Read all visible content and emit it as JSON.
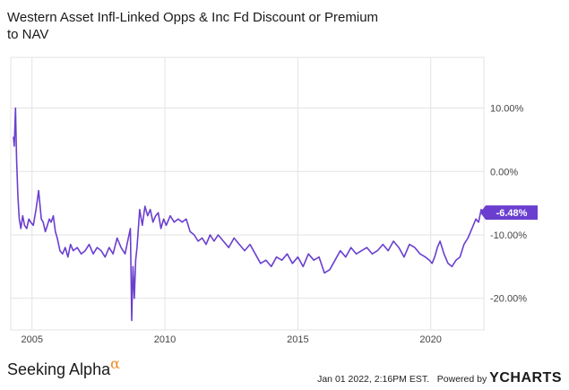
{
  "header": {
    "title": "Western Asset Infl-Linked Opps & Inc Fd Discount or Premium to NAV"
  },
  "footer": {
    "brand": "Seeking Alpha",
    "brand_mark": "α",
    "timestamp": "Jan 01 2022, 2:16PM EST.",
    "powered_by": "Powered by",
    "ycharts_logo": "YCHARTS"
  },
  "colors": {
    "series": "#6a3fcf",
    "grid": "#e3e3e3",
    "label_bg": "#6a3fcf",
    "brand_accent": "#f08a24"
  },
  "chart_data": {
    "type": "line",
    "title": "Western Asset Infl-Linked Opps & Inc Fd Discount or Premium to NAV",
    "xlabel": "",
    "ylabel": "",
    "xlim": [
      2004.2,
      2022.0
    ],
    "ylim": [
      -25,
      18
    ],
    "x_ticks": [
      2005,
      2010,
      2015,
      2020
    ],
    "x_tick_labels": [
      "2005",
      "2010",
      "2015",
      "2020"
    ],
    "y_ticks": [
      10,
      0,
      -10,
      -20
    ],
    "y_tick_labels": [
      "10.00%",
      "0.00%",
      "-10.00%",
      "-20.00%"
    ],
    "y_axis_side": "right",
    "grid": true,
    "last_value_label": "-6.48%",
    "series": [
      {
        "x": [
          2004.3,
          2004.33,
          2004.38,
          2004.42,
          2004.47,
          2004.52,
          2004.58,
          2004.65,
          2004.72,
          2004.8,
          2004.88,
          2004.95,
          2005.05,
          2005.15,
          2005.25,
          2005.35,
          2005.42,
          2005.5,
          2005.58,
          2005.65,
          2005.72,
          2005.8,
          2005.88,
          2005.95,
          2006.05,
          2006.15,
          2006.25,
          2006.35,
          2006.45,
          2006.55,
          2006.7,
          2006.85,
          2007.0,
          2007.15,
          2007.3,
          2007.45,
          2007.6,
          2007.75,
          2007.9,
          2008.05,
          2008.2,
          2008.35,
          2008.5,
          2008.6,
          2008.7,
          2008.75,
          2008.8,
          2008.85,
          2008.9,
          2008.95,
          2009.05,
          2009.15,
          2009.25,
          2009.35,
          2009.45,
          2009.55,
          2009.65,
          2009.75,
          2009.85,
          2009.95,
          2010.05,
          2010.2,
          2010.35,
          2010.5,
          2010.65,
          2010.8,
          2010.95,
          2011.1,
          2011.25,
          2011.4,
          2011.55,
          2011.7,
          2011.85,
          2012.0,
          2012.2,
          2012.4,
          2012.6,
          2012.8,
          2013.0,
          2013.2,
          2013.4,
          2013.6,
          2013.8,
          2014.0,
          2014.2,
          2014.4,
          2014.6,
          2014.8,
          2015.0,
          2015.2,
          2015.4,
          2015.6,
          2015.8,
          2016.0,
          2016.2,
          2016.4,
          2016.6,
          2016.8,
          2017.0,
          2017.2,
          2017.4,
          2017.6,
          2017.8,
          2018.0,
          2018.2,
          2018.4,
          2018.6,
          2018.8,
          2019.0,
          2019.2,
          2019.4,
          2019.6,
          2019.8,
          2019.95,
          2020.05,
          2020.15,
          2020.25,
          2020.35,
          2020.5,
          2020.65,
          2020.8,
          2020.95,
          2021.1,
          2021.25,
          2021.4,
          2021.55,
          2021.7,
          2021.8,
          2021.9,
          2022.0
        ],
        "y": [
          5.5,
          4.0,
          10.0,
          2.0,
          -4.0,
          -7.5,
          -9.0,
          -7.0,
          -8.5,
          -9.0,
          -7.5,
          -8.0,
          -8.5,
          -6.0,
          -3.0,
          -7.5,
          -8.0,
          -9.5,
          -8.5,
          -7.5,
          -8.0,
          -7.0,
          -9.5,
          -10.5,
          -12.5,
          -13.0,
          -12.0,
          -13.5,
          -11.5,
          -12.5,
          -12.0,
          -13.0,
          -12.5,
          -11.5,
          -13.0,
          -12.0,
          -12.5,
          -13.5,
          -12.0,
          -13.0,
          -10.5,
          -12.0,
          -13.0,
          -11.0,
          -9.0,
          -23.5,
          -15.0,
          -20.0,
          -14.0,
          -12.0,
          -6.0,
          -8.5,
          -5.5,
          -7.0,
          -6.0,
          -8.0,
          -7.0,
          -6.5,
          -9.0,
          -7.5,
          -8.5,
          -7.0,
          -8.0,
          -7.5,
          -8.0,
          -7.5,
          -9.5,
          -10.0,
          -11.0,
          -10.5,
          -11.5,
          -10.0,
          -11.0,
          -10.0,
          -11.0,
          -12.0,
          -10.5,
          -11.5,
          -12.5,
          -11.5,
          -13.0,
          -14.5,
          -14.0,
          -15.0,
          -13.5,
          -14.0,
          -13.0,
          -14.5,
          -13.5,
          -15.0,
          -13.0,
          -14.0,
          -13.5,
          -16.0,
          -15.5,
          -14.0,
          -12.5,
          -13.5,
          -12.0,
          -13.0,
          -12.5,
          -12.0,
          -13.0,
          -12.5,
          -11.5,
          -12.5,
          -11.0,
          -12.0,
          -13.5,
          -11.5,
          -12.0,
          -13.0,
          -13.5,
          -14.0,
          -14.5,
          -13.5,
          -12.0,
          -11.0,
          -13.0,
          -14.5,
          -15.0,
          -14.0,
          -13.5,
          -11.5,
          -10.5,
          -9.0,
          -7.5,
          -8.0,
          -6.0,
          -6.48
        ]
      }
    ]
  }
}
